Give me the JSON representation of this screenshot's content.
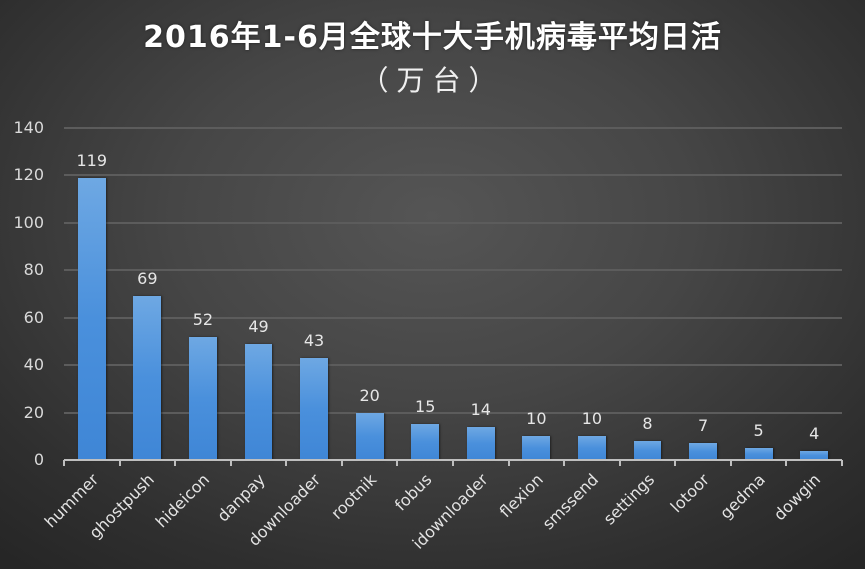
{
  "chart_data": {
    "type": "bar",
    "title": "2016年1-6月全球十大手机病毒平均日活",
    "subtitle": "（万台）",
    "xlabel": "",
    "ylabel": "",
    "categories": [
      "hummer",
      "ghostpush",
      "hideicon",
      "danpay",
      "downloader",
      "rootnik",
      "fobus",
      "idownloader",
      "flexion",
      "smssend",
      "settings",
      "lotoor",
      "gedma",
      "dowgin"
    ],
    "values": [
      119,
      69,
      52,
      49,
      43,
      20,
      15,
      14,
      10,
      10,
      8,
      7,
      5,
      4
    ],
    "data_labels": [
      "119",
      "69",
      "52",
      "49",
      "43",
      "20",
      "15",
      "14",
      "10",
      "10",
      "8",
      "7",
      "5",
      "4"
    ],
    "yticks": [
      0,
      20,
      40,
      60,
      80,
      100,
      120,
      140
    ],
    "ylim": [
      0,
      140
    ],
    "grid": true,
    "legend": "none",
    "colors": {
      "bar": "#4a90dc",
      "bar_top": "#6ea8e3",
      "background": "#404040",
      "gridline": "#5c5c5c",
      "axis": "#bfbfbf",
      "text": "#e6e6e6"
    }
  }
}
